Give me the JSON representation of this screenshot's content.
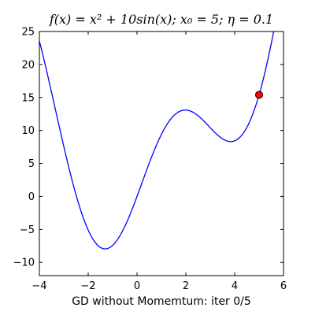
{
  "chart_data": {
    "type": "line",
    "title": "f(x) = x² + 10sin(x); x₀ = 5; η = 0.1",
    "xlabel": "GD without Momemtum: iter 0/5",
    "ylabel": "",
    "xlim": [
      -4,
      6
    ],
    "ylim": [
      -12,
      25
    ],
    "xticks": [
      -4,
      -2,
      0,
      2,
      4,
      6
    ],
    "yticks": [
      -10,
      -5,
      0,
      5,
      10,
      15,
      20,
      25
    ],
    "grid": false,
    "function": "x^2 + 10*sin(x)",
    "series": [
      {
        "x": [
          -4,
          -3.5,
          -3,
          -2.5,
          -2,
          -1.5,
          -1.31,
          -1,
          -0.5,
          0,
          0.5,
          1,
          1.5,
          2,
          2.5,
          3,
          3.5,
          3.84,
          4,
          4.5,
          5,
          5.5,
          5.65
        ],
        "y": [
          23.57,
          15.76,
          7.59,
          0.26,
          -5.09,
          -7.72,
          -7.95,
          -7.41,
          -4.54,
          0.0,
          5.04,
          9.41,
          12.22,
          13.09,
          12.23,
          10.41,
          8.74,
          8.32,
          8.43,
          10.48,
          15.41,
          23.19,
          25.64
        ],
        "color": "#0000ff"
      }
    ],
    "points": [
      {
        "x": 5,
        "y": 15.41,
        "color": "#ff0000"
      }
    ]
  }
}
